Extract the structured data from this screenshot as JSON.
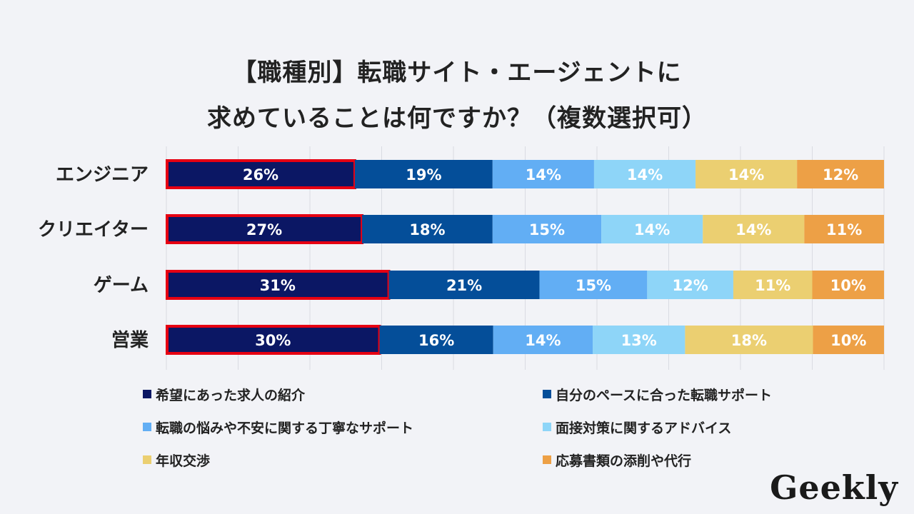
{
  "title_line1": "【職種別】転職サイト・エージェントに",
  "title_line2": "求めていることは何ですか？（複数選択可）",
  "logo": "Geekly",
  "chart_data": {
    "type": "bar",
    "orientation": "horizontal",
    "stacked": true,
    "categories": [
      "エンジニア",
      "クリエイター",
      "ゲーム",
      "営業"
    ],
    "series": [
      {
        "name": "希望にあった求人の紹介",
        "color": "#0b1764",
        "values": [
          26,
          27,
          31,
          30
        ],
        "labels": [
          "26%",
          "27%",
          "31%",
          "30%"
        ]
      },
      {
        "name": "自分のペースに合った転職サポート",
        "color": "#044e99",
        "values": [
          19,
          18,
          21,
          16
        ],
        "labels": [
          "19%",
          "18%",
          "21%",
          "16%"
        ]
      },
      {
        "name": "転職の悩みや不安に関する丁寧なサポート",
        "color": "#62aef4",
        "values": [
          14,
          15,
          15,
          14
        ],
        "labels": [
          "14%",
          "15%",
          "15%",
          "14%"
        ]
      },
      {
        "name": "面接対策に関するアドバイス",
        "color": "#8ed5f8",
        "values": [
          14,
          14,
          12,
          13
        ],
        "labels": [
          "14%",
          "14%",
          "12%",
          "13%"
        ]
      },
      {
        "name": "年収交渉",
        "color": "#ebcf71",
        "values": [
          14,
          14,
          11,
          18
        ],
        "labels": [
          "14%",
          "14%",
          "11%",
          "18%"
        ]
      },
      {
        "name": "応募書類の添削や代行",
        "color": "#eda046",
        "values": [
          12,
          11,
          10,
          10
        ],
        "labels": [
          "12%",
          "11%",
          "10%",
          "10%"
        ]
      }
    ],
    "highlight_series": 0,
    "highlight_color": "#e60012",
    "xlim": [
      0,
      100
    ],
    "grid": true,
    "legend_position": "bottom"
  }
}
